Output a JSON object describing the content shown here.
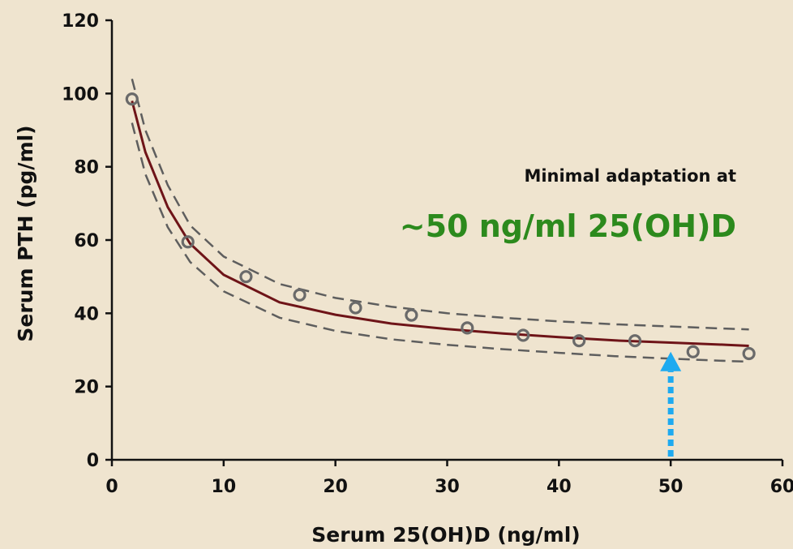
{
  "chart_data": {
    "type": "scatter",
    "xlabel": "Serum 25(OH)D (ng/ml)",
    "ylabel": "Serum PTH (pg/ml)",
    "xlim": [
      0,
      60
    ],
    "ylim": [
      0,
      120
    ],
    "x_ticks": [
      "0",
      "10",
      "20",
      "30",
      "40",
      "50",
      "60"
    ],
    "y_ticks": [
      "0",
      "20",
      "40",
      "60",
      "80",
      "100",
      "120"
    ],
    "grid": false,
    "legend": "none",
    "series": [
      {
        "kind": "points",
        "x": [
          1.8,
          6.8,
          12,
          16.8,
          21.8,
          26.8,
          31.8,
          36.8,
          41.8,
          46.8,
          52,
          57
        ],
        "y": [
          98.5,
          59.5,
          50,
          45,
          41.5,
          39.5,
          36,
          34,
          32.5,
          32.5,
          29.5,
          29
        ]
      },
      {
        "kind": "fit",
        "x": [
          1.8,
          3,
          5,
          7,
          10,
          15,
          20,
          25,
          30,
          35,
          40,
          45,
          50,
          55,
          57
        ],
        "y": [
          98,
          84,
          69,
          59,
          50.5,
          43,
          39.6,
          37.2,
          35.7,
          34.5,
          33.5,
          32.6,
          32,
          31.4,
          31.1
        ]
      },
      {
        "kind": "ci-upper",
        "x": [
          1.8,
          3,
          5,
          7,
          10,
          15,
          20,
          25,
          30,
          35,
          40,
          45,
          50,
          55,
          57
        ],
        "y": [
          104,
          90,
          75,
          64,
          55.5,
          48,
          44.2,
          41.8,
          40,
          38.8,
          37.8,
          37,
          36.4,
          35.8,
          35.6
        ]
      },
      {
        "kind": "ci-lower",
        "x": [
          1.8,
          3,
          5,
          7,
          10,
          15,
          20,
          25,
          30,
          35,
          40,
          45,
          50,
          55,
          57
        ],
        "y": [
          92,
          78,
          63.5,
          54,
          46,
          38.8,
          35.2,
          32.9,
          31.4,
          30.2,
          29.2,
          28.3,
          27.6,
          27,
          26.8
        ]
      }
    ],
    "annotations": [
      {
        "text": "Minimal adaptation at",
        "color": "#111111"
      },
      {
        "text": "~50 ng/ml 25(OH)D",
        "color": "#2c8a1d"
      }
    ],
    "marker_arrow": {
      "x": 50,
      "y_from": 0,
      "y_to": 29.5,
      "color": "#1eaaf0"
    },
    "colors": {
      "background": "#efe4cf",
      "fit": "#6e1418",
      "ci": "#5e5e5e",
      "points": "#6a6a6a",
      "axis": "#111111"
    }
  }
}
